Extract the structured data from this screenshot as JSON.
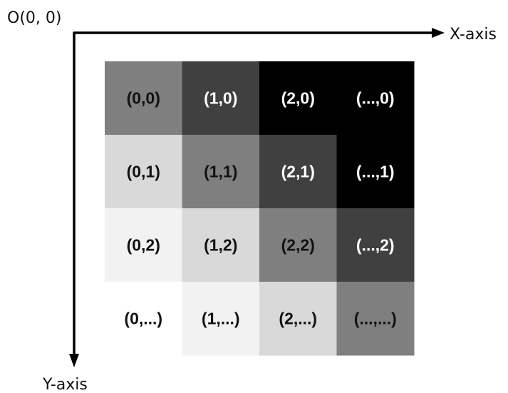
{
  "origin_label": "O(0, 0)",
  "x_axis_label": "X-axis",
  "y_axis_label": "Y-axis",
  "grid": {
    "rows": [
      [
        {
          "label": "(0,0)",
          "shade": "#7f7f7f",
          "text_color": "#111111"
        },
        {
          "label": "(1,0)",
          "shade": "#404040",
          "text_color": "#ffffff"
        },
        {
          "label": "(2,0)",
          "shade": "#000000",
          "text_color": "#ffffff"
        },
        {
          "label": "(...,0)",
          "shade": "#000000",
          "text_color": "#ffffff"
        }
      ],
      [
        {
          "label": "(0,1)",
          "shade": "#d9d9d9",
          "text_color": "#111111"
        },
        {
          "label": "(1,1)",
          "shade": "#7f7f7f",
          "text_color": "#111111"
        },
        {
          "label": "(2,1)",
          "shade": "#404040",
          "text_color": "#ffffff"
        },
        {
          "label": "(...,1)",
          "shade": "#000000",
          "text_color": "#ffffff"
        }
      ],
      [
        {
          "label": "(0,2)",
          "shade": "#f2f2f2",
          "text_color": "#111111"
        },
        {
          "label": "(1,2)",
          "shade": "#d9d9d9",
          "text_color": "#111111"
        },
        {
          "label": "(2,2)",
          "shade": "#7f7f7f",
          "text_color": "#111111"
        },
        {
          "label": "(...,2)",
          "shade": "#404040",
          "text_color": "#ffffff"
        }
      ],
      [
        {
          "label": "(0,...)",
          "shade": "#ffffff",
          "text_color": "#111111"
        },
        {
          "label": "(1,...)",
          "shade": "#f2f2f2",
          "text_color": "#111111"
        },
        {
          "label": "(2,...)",
          "shade": "#d9d9d9",
          "text_color": "#111111"
        },
        {
          "label": "(...,...)",
          "shade": "#7f7f7f",
          "text_color": "#111111"
        }
      ]
    ]
  }
}
